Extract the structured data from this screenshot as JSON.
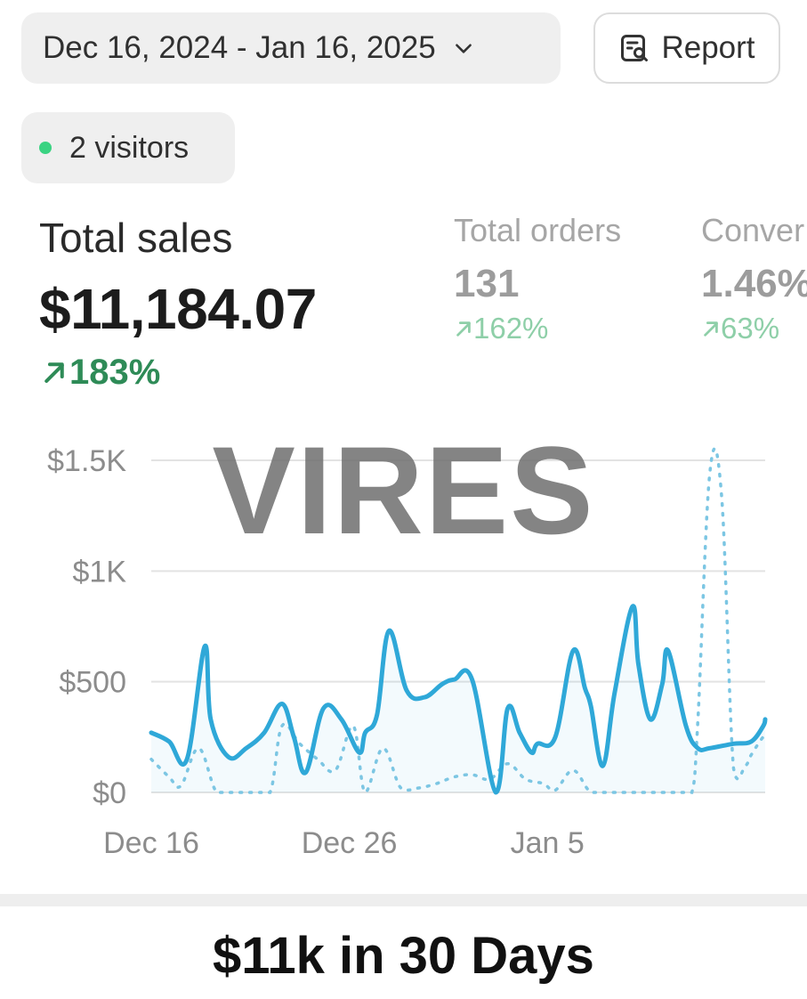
{
  "header": {
    "date_range": "Dec 16, 2024 - Jan 16, 2025",
    "report_label": "Report"
  },
  "live": {
    "visitors_label": "2 visitors"
  },
  "metrics": {
    "total_sales": {
      "label": "Total sales",
      "value": "$11,184.07",
      "change": "183%"
    },
    "total_orders": {
      "label": "Total orders",
      "value": "131",
      "change": "162%"
    },
    "conversion": {
      "label": "Conver",
      "value": "1.46%",
      "change": "63%"
    }
  },
  "watermark": "VIRES",
  "caption": "$11k in 30 Days",
  "colors": {
    "line": "#2fa8d8",
    "positive": "#2e8b57",
    "live_dot": "#3ad382"
  },
  "chart_data": {
    "type": "line",
    "title": "",
    "xlabel": "",
    "ylabel": "",
    "ylim": [
      0,
      1500
    ],
    "y_ticks": [
      {
        "value": 0,
        "label": "$0"
      },
      {
        "value": 500,
        "label": "$500"
      },
      {
        "value": 1000,
        "label": "$1K"
      },
      {
        "value": 1500,
        "label": "$1.5K"
      }
    ],
    "x_ticks": [
      {
        "day": 0,
        "label": "Dec 16"
      },
      {
        "day": 10,
        "label": "Dec 26"
      },
      {
        "day": 20,
        "label": "Jan 5"
      }
    ],
    "grid": true,
    "series": [
      {
        "style": "solid",
        "x": [
          0,
          0.9,
          1.8,
          2.7,
          3,
          3.9,
          4.8,
          5.7,
          6.6,
          7.2,
          7.8,
          8.7,
          9.6,
          10.5,
          10.8,
          11.4,
          12,
          12.9,
          13.8,
          14.7,
          15.3,
          16.2,
          17.4,
          18,
          18.6,
          19.2,
          19.5,
          20.4,
          21.3,
          21.9,
          22.2,
          22.8,
          23.4,
          24.3,
          24.6,
          25.2,
          25.8,
          26.1,
          27,
          27.6,
          28.2,
          29.4,
          30.3,
          30.9,
          31
        ],
        "y": [
          270,
          230,
          150,
          660,
          330,
          160,
          200,
          270,
          400,
          250,
          90,
          380,
          330,
          180,
          270,
          350,
          730,
          460,
          430,
          490,
          510,
          510,
          0,
          380,
          270,
          180,
          220,
          250,
          640,
          470,
          390,
          120,
          450,
          840,
          580,
          330,
          490,
          640,
          300,
          200,
          200,
          220,
          230,
          300,
          330
        ]
      },
      {
        "style": "dotted",
        "x": [
          0,
          0.9,
          1.5,
          2.4,
          3.3,
          4.2,
          5.1,
          6,
          6.6,
          7.5,
          8.4,
          9.3,
          10.2,
          10.8,
          11.7,
          12.6,
          13.5,
          14.4,
          15.3,
          16.2,
          17.1,
          18,
          18.9,
          19.8,
          20.4,
          21.3,
          22.2,
          23.1,
          24,
          24.9,
          25.8,
          26.7,
          27.3,
          27.6,
          28.2,
          28.8,
          29.4,
          30,
          30.3,
          30.9,
          31
        ],
        "y": [
          150,
          70,
          30,
          200,
          0,
          0,
          0,
          0,
          300,
          220,
          150,
          100,
          300,
          0,
          200,
          20,
          20,
          40,
          70,
          80,
          60,
          130,
          60,
          40,
          10,
          100,
          0,
          0,
          0,
          0,
          0,
          0,
          0,
          320,
          1440,
          1340,
          110,
          120,
          170,
          250,
          230
        ]
      }
    ]
  }
}
